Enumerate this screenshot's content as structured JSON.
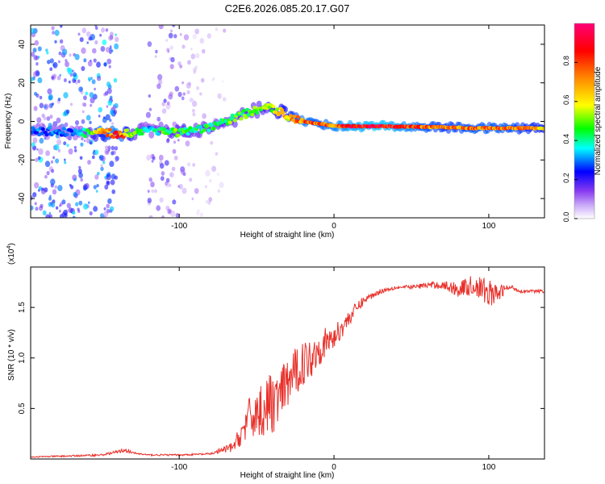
{
  "title": "C2E6.2026.085.20.17.G07",
  "colors": {
    "snr_line": "#e8302a",
    "axis": "#000000",
    "background": "#ffffff"
  },
  "chart_data": [
    {
      "type": "heatmap",
      "name": "spectrogram",
      "xlabel": "Height of straight line (km)",
      "ylabel": "Frequency (Hz)",
      "xlim": [
        -196,
        136
      ],
      "ylim": [
        -50,
        50
      ],
      "xticks": [
        -100,
        0,
        100
      ],
      "yticks": [
        -40,
        -20,
        0,
        20,
        40
      ],
      "colorbar": {
        "label": "Normalized spectral amplitude",
        "range": [
          0,
          1
        ],
        "ticks": [
          0.0,
          0.2,
          0.4,
          0.6,
          0.8
        ],
        "tick_labels": [
          "0.0",
          "0.2",
          "0.4",
          "0.6",
          "0.8"
        ],
        "colormap": [
          "#ffffff",
          "#8a3cf0",
          "#0000ff",
          "#00ffff",
          "#00ff00",
          "#ffff00",
          "#ff8800",
          "#ff0000",
          "#ff0077"
        ]
      },
      "main_ridge": [
        {
          "x": -196,
          "y": -5,
          "amp": 0.3
        },
        {
          "x": -170,
          "y": -5.5,
          "amp": 0.3
        },
        {
          "x": -160,
          "y": -6,
          "amp": 0.45
        },
        {
          "x": -150,
          "y": -6,
          "amp": 0.7
        },
        {
          "x": -140,
          "y": -6.5,
          "amp": 0.9
        },
        {
          "x": -130,
          "y": -6,
          "amp": 0.55
        },
        {
          "x": -120,
          "y": -4,
          "amp": 0.35
        },
        {
          "x": -110,
          "y": -5,
          "amp": 0.5
        },
        {
          "x": -100,
          "y": -6,
          "amp": 0.5
        },
        {
          "x": -90,
          "y": -5,
          "amp": 0.45
        },
        {
          "x": -80,
          "y": -3,
          "amp": 0.45
        },
        {
          "x": -70,
          "y": 0,
          "amp": 0.5
        },
        {
          "x": -60,
          "y": 3,
          "amp": 0.5
        },
        {
          "x": -50,
          "y": 6,
          "amp": 0.5
        },
        {
          "x": -40,
          "y": 7,
          "amp": 0.55
        },
        {
          "x": -35,
          "y": 5,
          "amp": 0.65
        },
        {
          "x": -30,
          "y": 3,
          "amp": 0.7
        },
        {
          "x": -20,
          "y": 0,
          "amp": 0.85
        },
        {
          "x": -10,
          "y": -1,
          "amp": 0.8
        },
        {
          "x": 0,
          "y": -2.5,
          "amp": 0.85
        },
        {
          "x": 10,
          "y": -2.5,
          "amp": 0.9
        },
        {
          "x": 30,
          "y": -2.5,
          "amp": 0.95
        },
        {
          "x": 50,
          "y": -2.8,
          "amp": 0.85
        },
        {
          "x": 70,
          "y": -3,
          "amp": 0.75
        },
        {
          "x": 90,
          "y": -3.5,
          "amp": 0.8
        },
        {
          "x": 110,
          "y": -3.5,
          "amp": 0.8
        },
        {
          "x": 136,
          "y": -3.5,
          "amp": 0.7
        }
      ],
      "scatter_bands": [
        {
          "x_from": -196,
          "x_to": -140,
          "density": 0.7,
          "amp": 0.3
        },
        {
          "x_from": -120,
          "x_to": -96,
          "density": 0.45,
          "amp": 0.18
        },
        {
          "x_from": -96,
          "x_to": -70,
          "density": 0.25,
          "amp": 0.1
        }
      ]
    },
    {
      "type": "line",
      "name": "snr",
      "xlabel": "Height of straight line (km)",
      "ylabel": "SNR (10 * v/v)",
      "y_multiplier": "(x10",
      "y_multiplier_exp": "4",
      "y_multiplier_close": ")",
      "xlim": [
        -196,
        136
      ],
      "ylim": [
        0,
        1.9
      ],
      "xticks": [
        -100,
        0,
        100
      ],
      "yticks": [
        0.5,
        1.0,
        1.5
      ],
      "ytick_labels": [
        "0.5",
        "1.0",
        "1.5"
      ],
      "series": [
        {
          "name": "SNR",
          "x": [
            -196,
            -170,
            -150,
            -140,
            -135,
            -130,
            -120,
            -100,
            -80,
            -65,
            -60,
            -55,
            -50,
            -45,
            -40,
            -35,
            -30,
            -25,
            -20,
            -15,
            -10,
            -5,
            0,
            5,
            10,
            15,
            20,
            25,
            30,
            40,
            50,
            60,
            70,
            80,
            90,
            95,
            100,
            105,
            110,
            115,
            120,
            136
          ],
          "y": [
            0.02,
            0.03,
            0.04,
            0.07,
            0.09,
            0.06,
            0.04,
            0.04,
            0.05,
            0.12,
            0.25,
            0.4,
            0.45,
            0.5,
            0.55,
            0.6,
            0.75,
            0.85,
            0.95,
            1.0,
            1.1,
            1.15,
            1.2,
            1.3,
            1.4,
            1.5,
            1.58,
            1.62,
            1.66,
            1.7,
            1.7,
            1.72,
            1.72,
            1.68,
            1.72,
            1.68,
            1.65,
            1.62,
            1.68,
            1.7,
            1.66,
            1.66
          ],
          "noise": [
            0.005,
            0.008,
            0.01,
            0.015,
            0.02,
            0.01,
            0.008,
            0.008,
            0.01,
            0.05,
            0.12,
            0.2,
            0.25,
            0.3,
            0.3,
            0.28,
            0.25,
            0.25,
            0.22,
            0.2,
            0.18,
            0.15,
            0.12,
            0.1,
            0.08,
            0.06,
            0.04,
            0.03,
            0.025,
            0.02,
            0.02,
            0.03,
            0.04,
            0.08,
            0.1,
            0.12,
            0.14,
            0.1,
            0.05,
            0.02,
            0.015,
            0.015
          ]
        }
      ]
    }
  ]
}
